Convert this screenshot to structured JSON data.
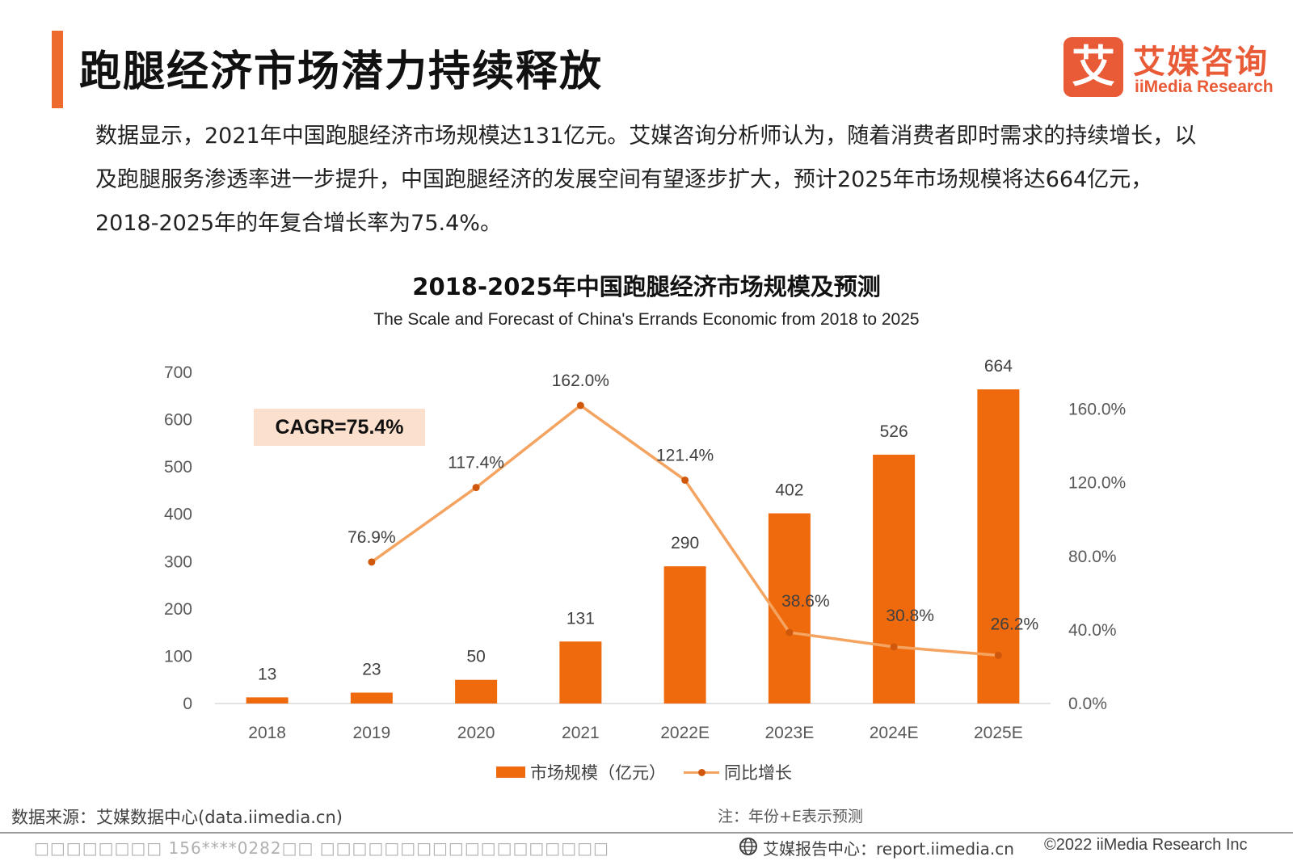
{
  "header": {
    "title": "跑腿经济市场潜力持续释放",
    "logo_mark": "艾",
    "logo_cn": "艾媒咨询",
    "logo_en": "iiMedia Research"
  },
  "intro": "数据显示，2021年中国跑腿经济市场规模达131亿元。艾媒咨询分析师认为，随着消费者即时需求的持续增长，以及跑腿服务渗透率进一步提升，中国跑腿经济的发展空间有望逐步扩大，预计2025年市场规模将达664亿元，2018-2025年的年复合增长率为75.4%。",
  "chart_data": {
    "type": "bar",
    "title": "2018-2025年中国跑腿经济市场规模及预测",
    "subtitle": "The Scale and Forecast of China's Errands Economic from 2018 to 2025",
    "categories": [
      "2018",
      "2019",
      "2020",
      "2021",
      "2022E",
      "2023E",
      "2024E",
      "2025E"
    ],
    "series": [
      {
        "name": "市场规模（亿元）",
        "type": "bar",
        "axis": "left",
        "color": "#ee6a0c",
        "values": [
          13,
          23,
          50,
          131,
          290,
          402,
          526,
          664
        ],
        "labels": [
          "13",
          "23",
          "50",
          "131",
          "290",
          "402",
          "526",
          "664"
        ]
      },
      {
        "name": "同比增长",
        "type": "line",
        "axis": "right",
        "color": "#f4a460",
        "values": [
          null,
          76.9,
          117.4,
          162.0,
          121.4,
          38.6,
          30.8,
          26.2
        ],
        "labels": [
          "",
          "76.9%",
          "117.4%",
          "162.0%",
          "121.4%",
          "38.6%",
          "30.8%",
          "26.2%"
        ]
      }
    ],
    "y_left": {
      "min": 0,
      "max": 700,
      "ticks": [
        "0",
        "100",
        "200",
        "300",
        "400",
        "500",
        "600",
        "700"
      ]
    },
    "y_right": {
      "min": 0,
      "max": 180,
      "ticks": [
        "0.0%",
        "40.0%",
        "80.0%",
        "120.0%",
        "160.0%"
      ]
    },
    "grid": false,
    "legend_position": "bottom",
    "annotation": "CAGR=75.4%"
  },
  "footer": {
    "source": "数据来源：艾媒数据中心(data.iimedia.cn)",
    "note": "注：年份+E表示预测",
    "watermark": "□□□□□□□□ 156****0282□□ □□□□□□□□□□□□□□□□□□",
    "report": "艾媒报告中心：report.iimedia.cn",
    "copyright": "©2022  iiMedia Research  Inc"
  },
  "colors": {
    "accent": "#ec6b2d",
    "bar": "#ee6a0c",
    "line": "#f4a460",
    "point": "#d0580c"
  },
  "icons": {
    "globe": "globe-icon"
  }
}
